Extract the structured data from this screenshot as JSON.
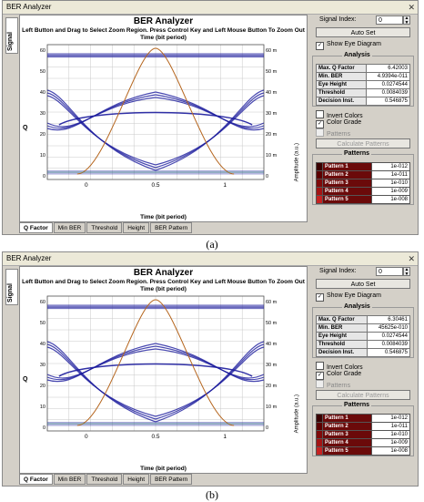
{
  "panels": [
    {
      "window_title": "BER Analyzer",
      "plot_title": "BER Analyzer",
      "instruction": "Left Button and Drag to Select Zoom Region. Press Control Key and Left Mouse Button To Zoom Out",
      "top_axis_label": "Time (bit period)",
      "bottom_axis_label": "Time (bit period)",
      "x_ticks": [
        "0",
        "0.5",
        "1"
      ],
      "y_left_label": "Q",
      "y_right_label": "Amplitude (a.u.)",
      "y_left_ticks": [
        "60",
        "50",
        "40",
        "30",
        "20",
        "10",
        "0"
      ],
      "y_right_ticks": [
        "60 m",
        "50 m",
        "40 m",
        "30 m",
        "20 m",
        "10 m",
        "0"
      ],
      "vertical_tab": "Signal",
      "bottom_tabs": [
        "Q Factor",
        "Min BER",
        "Threshold",
        "Height",
        "BER Pattern"
      ],
      "signal_index_label": "Signal Index:",
      "signal_index_value": "0",
      "auto_set_label": "Auto Set",
      "show_eye_label": "Show Eye Diagram",
      "analysis_title": "Analysis",
      "analysis": [
        {
          "k": "Max. Q Factor",
          "v": "6.42003"
        },
        {
          "k": "Min. BER",
          "v": "4.9394e-011"
        },
        {
          "k": "Eye Height",
          "v": "0.0274544"
        },
        {
          "k": "Threshold",
          "v": "0.0084039"
        },
        {
          "k": "Decision Inst.",
          "v": "0.546875"
        }
      ],
      "invert_colors_label": "Invert Colors",
      "color_grade_label": "Color Grade",
      "patterns_check_label": "Patterns",
      "calc_patterns_label": "Calculate Patterns",
      "patterns_title": "Patterns",
      "patterns": [
        {
          "name": "Pattern 1",
          "ber": "1e-012",
          "color": "#3a0000"
        },
        {
          "name": "Pattern 2",
          "ber": "1e-011",
          "color": "#5c0000"
        },
        {
          "name": "Pattern 3",
          "ber": "1e-010",
          "color": "#7f0a0a"
        },
        {
          "name": "Pattern 4",
          "ber": "1e-009",
          "color": "#a31414"
        },
        {
          "name": "Pattern 5",
          "ber": "1e-008",
          "color": "#c62222"
        }
      ]
    },
    {
      "window_title": "BER Analyzer",
      "plot_title": "BER Analyzer",
      "instruction": "Left Button and Drag to Select Zoom Region. Press Control Key and Left Mouse Button To Zoom Out",
      "top_axis_label": "Time (bit period)",
      "bottom_axis_label": "Time (bit period)",
      "x_ticks": [
        "0",
        "0.5",
        "1"
      ],
      "y_left_label": "Q",
      "y_right_label": "Amplitude (a.u.)",
      "y_left_ticks": [
        "60",
        "50",
        "40",
        "30",
        "20",
        "10",
        "0"
      ],
      "y_right_ticks": [
        "60 m",
        "50 m",
        "40 m",
        "30 m",
        "20 m",
        "10 m",
        "0"
      ],
      "vertical_tab": "Signal",
      "bottom_tabs": [
        "Q Factor",
        "Min BER",
        "Threshold",
        "Height",
        "BER Pattern"
      ],
      "signal_index_label": "Signal Index:",
      "signal_index_value": "0",
      "auto_set_label": "Auto Set",
      "show_eye_label": "Show Eye Diagram",
      "analysis_title": "Analysis",
      "analysis": [
        {
          "k": "Max. Q Factor",
          "v": "6.30461"
        },
        {
          "k": "Min. BER",
          "v": "45625e-010"
        },
        {
          "k": "Eye Height",
          "v": "0.0274544"
        },
        {
          "k": "Threshold",
          "v": "0.0084039"
        },
        {
          "k": "Decision Inst.",
          "v": "0.546875"
        }
      ],
      "invert_colors_label": "Invert Colors",
      "color_grade_label": "Color Grade",
      "patterns_check_label": "Patterns",
      "calc_patterns_label": "Calculate Patterns",
      "patterns_title": "Patterns",
      "patterns": [
        {
          "name": "Pattern 1",
          "ber": "1e-012",
          "color": "#3a0000"
        },
        {
          "name": "Pattern 2",
          "ber": "1e-011",
          "color": "#5c0000"
        },
        {
          "name": "Pattern 3",
          "ber": "1e-010",
          "color": "#7f0a0a"
        },
        {
          "name": "Pattern 4",
          "ber": "1e-009",
          "color": "#a31414"
        },
        {
          "name": "Pattern 5",
          "ber": "1e-008",
          "color": "#c62222"
        }
      ]
    }
  ],
  "captions": [
    "(a)",
    "(b)"
  ],
  "colors": {
    "eye_trace": "#1a1a9c",
    "q_curve": "#b5651d",
    "grid": "#c8c8c8",
    "panel_bg": "#d4d0c8"
  }
}
